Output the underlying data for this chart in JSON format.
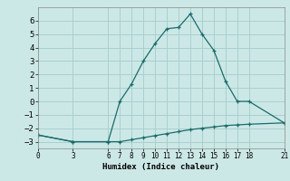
{
  "xlabel": "Humidex (Indice chaleur)",
  "bg_color": "#cce8e6",
  "grid_color": "#a8d0ce",
  "line_color": "#1a6b6b",
  "line1_x": [
    0,
    3,
    6,
    7,
    8,
    9,
    10,
    11,
    12,
    13,
    14,
    15,
    16,
    17,
    18,
    21
  ],
  "line1_y": [
    -2.5,
    -3.0,
    -3.0,
    0.0,
    1.3,
    3.0,
    4.3,
    5.4,
    5.5,
    6.5,
    5.0,
    3.8,
    1.5,
    0.0,
    0.0,
    -1.6
  ],
  "line2_x": [
    0,
    3,
    6,
    7,
    8,
    9,
    10,
    11,
    12,
    13,
    14,
    15,
    16,
    17,
    18,
    21
  ],
  "line2_y": [
    -2.5,
    -3.0,
    -3.0,
    -3.0,
    -2.85,
    -2.7,
    -2.55,
    -2.4,
    -2.25,
    -2.1,
    -2.0,
    -1.9,
    -1.8,
    -1.75,
    -1.7,
    -1.6
  ],
  "xticks": [
    0,
    3,
    6,
    7,
    8,
    9,
    10,
    11,
    12,
    13,
    14,
    15,
    16,
    17,
    18,
    21
  ],
  "yticks": [
    -3,
    -2,
    -1,
    0,
    1,
    2,
    3,
    4,
    5,
    6
  ],
  "xlim": [
    0,
    21
  ],
  "ylim": [
    -3.5,
    7.0
  ]
}
